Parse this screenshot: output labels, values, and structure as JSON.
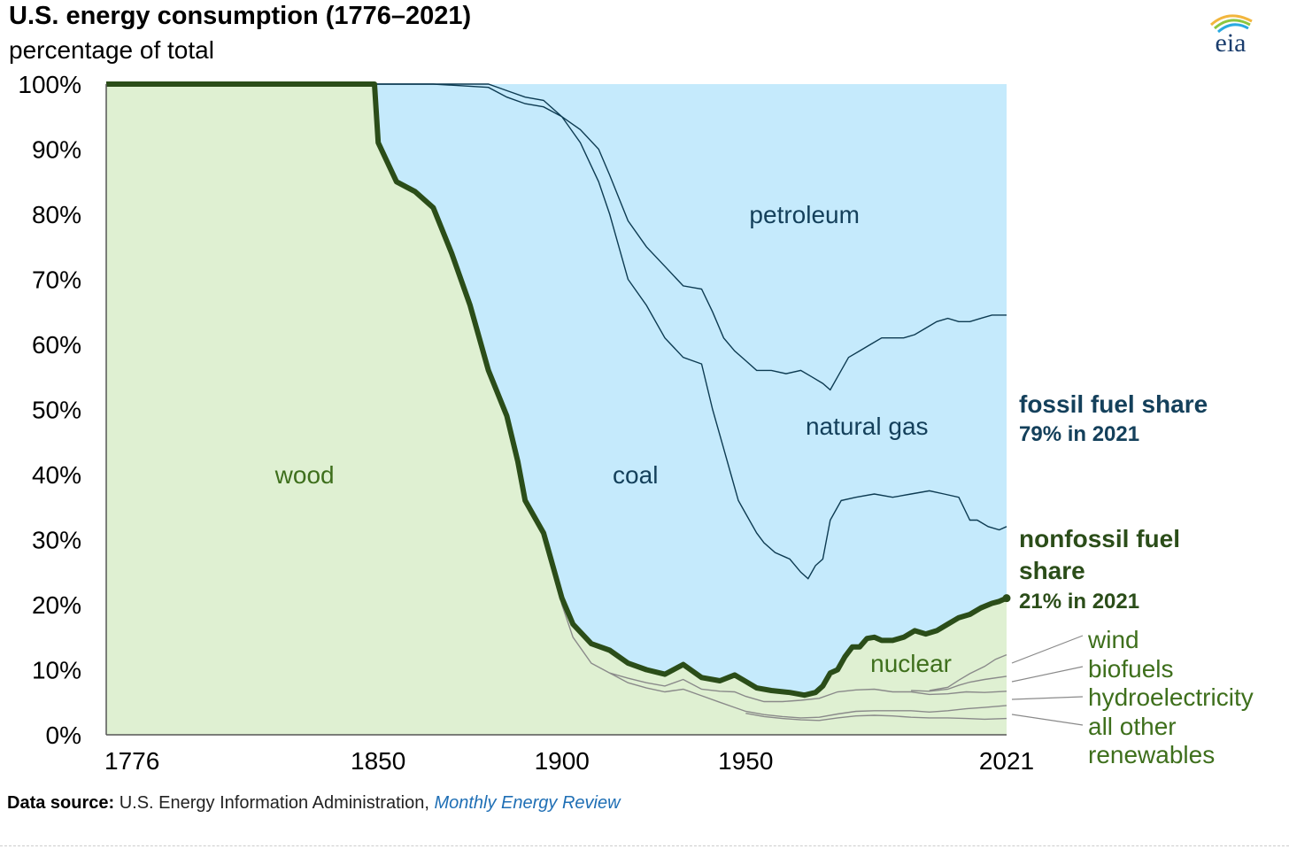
{
  "header": {
    "title": "U.S. energy consumption (1776–2021)",
    "subtitle": "percentage of total"
  },
  "logo": {
    "text": "eia",
    "icon": "eia-logo-sunburst"
  },
  "source": {
    "label": "Data source:",
    "agency": "U.S. Energy Information Administration,",
    "publication": "Monthly Energy Review"
  },
  "annotations": {
    "fossil_title": "fossil fuel share",
    "fossil_value": "79% in 2021",
    "nonfossil_title_1": "nonfossil fuel",
    "nonfossil_title_2": "share",
    "nonfossil_value": "21% in 2021"
  },
  "chart_data": {
    "type": "area",
    "title": "U.S. energy consumption (1776–2021)",
    "ylabel": "percentage of total",
    "xlim": [
      1776,
      2021
    ],
    "ylim": [
      0,
      100
    ],
    "x_ticks": [
      "1776",
      "1850",
      "1900",
      "1950",
      "2021"
    ],
    "y_ticks": [
      "0%",
      "10%",
      "20%",
      "30%",
      "40%",
      "50%",
      "60%",
      "70%",
      "80%",
      "90%",
      "100%"
    ],
    "grid": false,
    "colors": {
      "fossil": "#c5eafc",
      "nonfossil": "#dff0d2",
      "nonfossil_line": "#2b4d19",
      "boundary": "#0d3b52",
      "renewable_lines": "#8a8a8a",
      "fossil_text": "#14405b",
      "nonfossil_text": "#3e6f1c"
    },
    "area_labels": [
      {
        "label": "wood",
        "x": 1830,
        "y": 40,
        "group": "nonfossil"
      },
      {
        "label": "coal",
        "x": 1920,
        "y": 40,
        "group": "fossil"
      },
      {
        "label": "petroleum",
        "x": 1966,
        "y": 80,
        "group": "fossil"
      },
      {
        "label": "natural gas",
        "x": 1983,
        "y": 47.5,
        "group": "fossil"
      },
      {
        "label": "nuclear",
        "x": 1995,
        "y": 11,
        "group": "nonfossil"
      }
    ],
    "callout_labels": [
      "wind",
      "biofuels",
      "hydroelectricity",
      "all other",
      "renewables"
    ],
    "series": [
      {
        "name": "nonfossil fuel share",
        "points": [
          [
            1776,
            100
          ],
          [
            1849,
            100
          ],
          [
            1850,
            91
          ],
          [
            1855,
            85
          ],
          [
            1860,
            83.5
          ],
          [
            1865,
            81
          ],
          [
            1870,
            74
          ],
          [
            1875,
            66
          ],
          [
            1880,
            56
          ],
          [
            1885,
            49
          ],
          [
            1888,
            42
          ],
          [
            1890,
            36
          ],
          [
            1895,
            31
          ],
          [
            1897,
            27
          ],
          [
            1900,
            21
          ],
          [
            1903,
            17
          ],
          [
            1908,
            14
          ],
          [
            1913,
            13
          ],
          [
            1918,
            11
          ],
          [
            1923,
            10
          ],
          [
            1928,
            9.3
          ],
          [
            1933,
            10.8
          ],
          [
            1938,
            8.8
          ],
          [
            1943,
            8.3
          ],
          [
            1947,
            9.2
          ],
          [
            1950,
            8.2
          ],
          [
            1953,
            7.2
          ],
          [
            1957,
            6.8
          ],
          [
            1962,
            6.5
          ],
          [
            1966,
            6.1
          ],
          [
            1969,
            6.5
          ],
          [
            1971,
            7.5
          ],
          [
            1973,
            9.5
          ],
          [
            1975,
            10
          ],
          [
            1977,
            12
          ],
          [
            1979,
            13.5
          ],
          [
            1981,
            13.5
          ],
          [
            1983,
            14.8
          ],
          [
            1985,
            15
          ],
          [
            1987,
            14.5
          ],
          [
            1990,
            14.5
          ],
          [
            1993,
            15
          ],
          [
            1996,
            16
          ],
          [
            1999,
            15.5
          ],
          [
            2002,
            16
          ],
          [
            2005,
            17
          ],
          [
            2008,
            18
          ],
          [
            2011,
            18.5
          ],
          [
            2014,
            19.5
          ],
          [
            2017,
            20.2
          ],
          [
            2019,
            20.5
          ],
          [
            2021,
            21
          ]
        ]
      },
      {
        "name": "coal / natural gas boundary",
        "points": [
          [
            1776,
            100
          ],
          [
            1875,
            100
          ],
          [
            1880,
            100
          ],
          [
            1885,
            99
          ],
          [
            1890,
            98
          ],
          [
            1895,
            97.5
          ],
          [
            1900,
            95
          ],
          [
            1905,
            91
          ],
          [
            1910,
            85
          ],
          [
            1913,
            80
          ],
          [
            1918,
            70
          ],
          [
            1923,
            66
          ],
          [
            1928,
            61
          ],
          [
            1933,
            58
          ],
          [
            1938,
            57
          ],
          [
            1941,
            50
          ],
          [
            1944,
            44
          ],
          [
            1946,
            40
          ],
          [
            1948,
            36
          ],
          [
            1950,
            34
          ],
          [
            1953,
            31
          ],
          [
            1955,
            29.5
          ],
          [
            1958,
            28
          ],
          [
            1962,
            27
          ],
          [
            1965,
            25
          ],
          [
            1967,
            24
          ],
          [
            1969,
            26
          ],
          [
            1971,
            27
          ],
          [
            1973,
            33
          ],
          [
            1976,
            36
          ],
          [
            1980,
            36.5
          ],
          [
            1985,
            37
          ],
          [
            1990,
            36.5
          ],
          [
            1995,
            37
          ],
          [
            2000,
            37.5
          ],
          [
            2004,
            37
          ],
          [
            2008,
            36.5
          ],
          [
            2011,
            33
          ],
          [
            2013,
            33
          ],
          [
            2016,
            32
          ],
          [
            2019,
            31.5
          ],
          [
            2021,
            32
          ]
        ]
      },
      {
        "name": "natural gas / petroleum boundary",
        "points": [
          [
            1776,
            100
          ],
          [
            1865,
            100
          ],
          [
            1880,
            99.5
          ],
          [
            1885,
            98
          ],
          [
            1890,
            97
          ],
          [
            1895,
            96.5
          ],
          [
            1900,
            95
          ],
          [
            1905,
            93
          ],
          [
            1910,
            90
          ],
          [
            1913,
            86
          ],
          [
            1918,
            79
          ],
          [
            1923,
            75
          ],
          [
            1928,
            72
          ],
          [
            1933,
            69
          ],
          [
            1938,
            68.5
          ],
          [
            1941,
            65
          ],
          [
            1944,
            61
          ],
          [
            1947,
            59
          ],
          [
            1950,
            57.5
          ],
          [
            1953,
            56
          ],
          [
            1957,
            56
          ],
          [
            1961,
            55.5
          ],
          [
            1965,
            56
          ],
          [
            1968,
            55
          ],
          [
            1971,
            54
          ],
          [
            1973,
            53
          ],
          [
            1975,
            55
          ],
          [
            1978,
            58
          ],
          [
            1981,
            59
          ],
          [
            1984,
            60
          ],
          [
            1987,
            61
          ],
          [
            1990,
            61
          ],
          [
            1993,
            61
          ],
          [
            1996,
            61.5
          ],
          [
            1999,
            62.5
          ],
          [
            2002,
            63.5
          ],
          [
            2005,
            64
          ],
          [
            2008,
            63.5
          ],
          [
            2011,
            63.5
          ],
          [
            2014,
            64
          ],
          [
            2017,
            64.5
          ],
          [
            2019,
            64.5
          ],
          [
            2021,
            64.5
          ]
        ]
      },
      {
        "name": "wood underlying boundary",
        "points": [
          [
            1895,
            31
          ],
          [
            1897,
            27
          ],
          [
            1900,
            20
          ],
          [
            1903,
            15
          ],
          [
            1908,
            11
          ],
          [
            1913,
            9.5
          ],
          [
            1918,
            8
          ],
          [
            1923,
            7.2
          ],
          [
            1928,
            6.6
          ],
          [
            1933,
            7
          ],
          [
            1938,
            6
          ],
          [
            1943,
            5
          ],
          [
            1947,
            4.2
          ],
          [
            1950,
            3.6
          ],
          [
            1955,
            3.1
          ],
          [
            1960,
            2.8
          ],
          [
            1965,
            2.6
          ],
          [
            1970,
            2.7
          ],
          [
            1975,
            3.2
          ],
          [
            1980,
            3.6
          ],
          [
            1985,
            3.7
          ],
          [
            1990,
            3.7
          ],
          [
            1995,
            3.7
          ],
          [
            2000,
            3.5
          ],
          [
            2005,
            3.7
          ],
          [
            2010,
            4
          ],
          [
            2015,
            4.2
          ],
          [
            2021,
            4.5
          ]
        ]
      },
      {
        "name": "hydroelectricity cumulative",
        "points": [
          [
            1913,
            9.5
          ],
          [
            1918,
            8.7
          ],
          [
            1923,
            8
          ],
          [
            1928,
            7.5
          ],
          [
            1933,
            8.5
          ],
          [
            1938,
            7
          ],
          [
            1943,
            6.7
          ],
          [
            1947,
            6.6
          ],
          [
            1950,
            5.9
          ],
          [
            1955,
            5.1
          ],
          [
            1960,
            5.1
          ],
          [
            1965,
            5.3
          ],
          [
            1970,
            5.6
          ],
          [
            1975,
            6.6
          ],
          [
            1980,
            6.9
          ],
          [
            1985,
            7
          ],
          [
            1990,
            6.6
          ],
          [
            1995,
            6.6
          ],
          [
            2000,
            6.2
          ],
          [
            2005,
            6.3
          ],
          [
            2010,
            6.6
          ],
          [
            2015,
            6.5
          ],
          [
            2021,
            6.7
          ]
        ]
      },
      {
        "name": "biofuels cumulative",
        "points": [
          [
            1995,
            6.8
          ],
          [
            2000,
            6.7
          ],
          [
            2005,
            7
          ],
          [
            2008,
            7.6
          ],
          [
            2011,
            8.1
          ],
          [
            2015,
            8.5
          ],
          [
            2021,
            9
          ]
        ]
      },
      {
        "name": "wind cumulative",
        "points": [
          [
            2000,
            6.8
          ],
          [
            2005,
            7.3
          ],
          [
            2008,
            8.4
          ],
          [
            2011,
            9.4
          ],
          [
            2015,
            10.5
          ],
          [
            2018,
            11.6
          ],
          [
            2021,
            12.3
          ]
        ]
      },
      {
        "name": "all other renewables cumulative",
        "points": [
          [
            1950,
            3.3
          ],
          [
            1955,
            2.8
          ],
          [
            1960,
            2.5
          ],
          [
            1965,
            2.3
          ],
          [
            1970,
            2.2
          ],
          [
            1975,
            2.6
          ],
          [
            1980,
            2.9
          ],
          [
            1985,
            3
          ],
          [
            1990,
            2.9
          ],
          [
            1995,
            2.7
          ],
          [
            2000,
            2.6
          ],
          [
            2005,
            2.6
          ],
          [
            2010,
            2.5
          ],
          [
            2015,
            2.4
          ],
          [
            2021,
            2.5
          ]
        ]
      }
    ]
  }
}
